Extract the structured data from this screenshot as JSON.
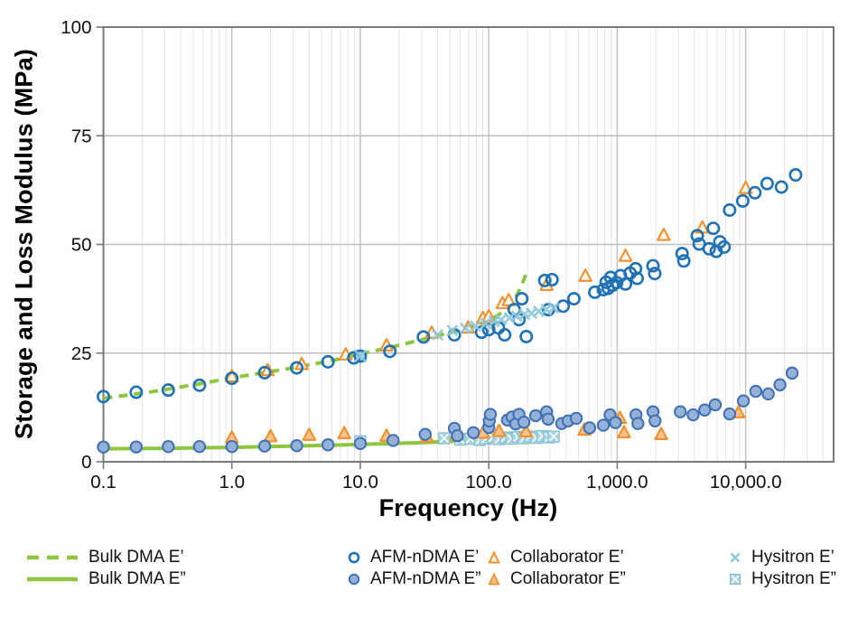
{
  "colors": {
    "green": "#8dc63f",
    "blue": "#2171b5",
    "blue_fill": "#96b1d8",
    "blue_fill_stroke": "#3f71b4",
    "orange": "#f0912d",
    "orange_fill": "#f7c28d",
    "orange_open_fill": "#fdf4ea",
    "teal": "#8ec6da",
    "teal_fill": "#a5d2e0",
    "teal_square_stroke": "#85bdd0"
  },
  "legend": {
    "items": [
      {
        "label": "Bulk DMA E’"
      },
      {
        "label": "Bulk DMA E”"
      },
      {
        "label": "AFM-nDMA E’"
      },
      {
        "label": "AFM-nDMA E”"
      },
      {
        "label": "Collaborator E’"
      },
      {
        "label": "Collaborator E”"
      },
      {
        "label": "Hysitron E’"
      },
      {
        "label": "Hysitron E”"
      }
    ]
  },
  "chart_data": {
    "type": "scatter",
    "title": "",
    "xlabel": "Frequency (Hz)",
    "ylabel": "Storage and Loss Modulus (MPa)",
    "x_scale": "log",
    "xlim": [
      0.1,
      48400
    ],
    "ylim": [
      0,
      100
    ],
    "x_ticks": [
      {
        "value": 0.1,
        "label": "0.1"
      },
      {
        "value": 1,
        "label": "1.0"
      },
      {
        "value": 10,
        "label": "10.0"
      },
      {
        "value": 100,
        "label": "100.0"
      },
      {
        "value": 1000,
        "label": "1,000.0"
      },
      {
        "value": 10000,
        "label": "10,000.0"
      }
    ],
    "y_ticks": [
      {
        "value": 0,
        "label": "0"
      },
      {
        "value": 25,
        "label": "25"
      },
      {
        "value": 50,
        "label": "50"
      },
      {
        "value": 75,
        "label": "75"
      },
      {
        "value": 100,
        "label": "100"
      }
    ],
    "grid": {
      "minor_color": "#e4e4e4",
      "major_color": "#c3c3c3",
      "h_color": "#bdbdbd",
      "border_color": "#7a7a7a"
    },
    "draw_order": [
      1,
      0,
      7,
      5,
      3,
      4,
      2,
      6
    ],
    "series": [
      {
        "name": "Bulk DMA E’",
        "type": "line",
        "style": "dashed",
        "color": "#8dc63f",
        "points": [
          [
            0.1,
            14.6
          ],
          [
            0.16,
            15.4
          ],
          [
            0.25,
            16.2
          ],
          [
            0.4,
            17.2
          ],
          [
            0.63,
            18.2
          ],
          [
            1.0,
            19.3
          ],
          [
            1.6,
            20.3
          ],
          [
            2.5,
            21.2
          ],
          [
            4.0,
            22.3
          ],
          [
            6.3,
            23.4
          ],
          [
            10,
            24.8
          ],
          [
            16,
            26.1
          ],
          [
            25,
            27.5
          ],
          [
            40,
            29.0
          ],
          [
            63,
            30.4
          ],
          [
            100,
            32.5
          ],
          [
            130,
            34.5
          ],
          [
            160,
            37.5
          ],
          [
            180,
            40.5
          ],
          [
            195,
            43.2
          ]
        ]
      },
      {
        "name": "Bulk DMA E”",
        "type": "line",
        "style": "solid",
        "color": "#8dc63f",
        "points": [
          [
            0.1,
            3.0
          ],
          [
            0.3,
            3.1
          ],
          [
            1.0,
            3.3
          ],
          [
            3.0,
            3.6
          ],
          [
            10,
            4.0
          ],
          [
            30,
            4.4
          ],
          [
            60,
            4.8
          ],
          [
            90,
            5.3
          ],
          [
            110,
            6.2
          ]
        ]
      },
      {
        "name": "AFM-nDMA E’",
        "type": "scatter",
        "marker": "circle-open",
        "color": "#2171b5",
        "points": [
          [
            0.1,
            15.0
          ],
          [
            0.18,
            16.0
          ],
          [
            0.32,
            16.5
          ],
          [
            0.56,
            17.6
          ],
          [
            1.0,
            19.2
          ],
          [
            1.8,
            20.5
          ],
          [
            3.2,
            21.6
          ],
          [
            5.6,
            23.0
          ],
          [
            8.9,
            23.9
          ],
          [
            10,
            24.3
          ],
          [
            17,
            25.4
          ],
          [
            31,
            28.7
          ],
          [
            54,
            29.2
          ],
          [
            88,
            29.8
          ],
          [
            100,
            30.4
          ],
          [
            119,
            30.8
          ],
          [
            133,
            29.2
          ],
          [
            158,
            35.0
          ],
          [
            172,
            32.7
          ],
          [
            181,
            37.5
          ],
          [
            196,
            28.8
          ],
          [
            273,
            41.7
          ],
          [
            292,
            35.0
          ],
          [
            311,
            41.9
          ],
          [
            380,
            35.8
          ],
          [
            460,
            37.5
          ],
          [
            670,
            39.0
          ],
          [
            780,
            39.6
          ],
          [
            820,
            41.3
          ],
          [
            850,
            39.9
          ],
          [
            890,
            42.4
          ],
          [
            920,
            40.6
          ],
          [
            990,
            41.2
          ],
          [
            1060,
            42.8
          ],
          [
            1160,
            40.9
          ],
          [
            1260,
            43.4
          ],
          [
            1390,
            44.4
          ],
          [
            1430,
            42.2
          ],
          [
            1900,
            45.1
          ],
          [
            1960,
            43.3
          ],
          [
            3200,
            47.9
          ],
          [
            3300,
            46.2
          ],
          [
            4200,
            52.0
          ],
          [
            4350,
            50.1
          ],
          [
            5200,
            49.0
          ],
          [
            5600,
            53.7
          ],
          [
            5900,
            48.4
          ],
          [
            6300,
            50.6
          ],
          [
            6800,
            49.4
          ],
          [
            7500,
            57.9
          ],
          [
            9500,
            60.0
          ],
          [
            11800,
            61.9
          ],
          [
            14700,
            64.0
          ],
          [
            19000,
            63.2
          ],
          [
            24500,
            66.0
          ]
        ]
      },
      {
        "name": "AFM-nDMA E”",
        "type": "scatter",
        "marker": "circle-filled",
        "color": "#3f71b4",
        "fill": "#96b1d8",
        "points": [
          [
            0.1,
            3.4
          ],
          [
            0.18,
            3.4
          ],
          [
            0.32,
            3.5
          ],
          [
            0.56,
            3.5
          ],
          [
            1.0,
            3.5
          ],
          [
            1.8,
            3.6
          ],
          [
            3.2,
            3.7
          ],
          [
            5.6,
            3.9
          ],
          [
            10,
            4.2
          ],
          [
            18,
            4.9
          ],
          [
            32,
            6.3
          ],
          [
            54,
            7.7
          ],
          [
            57,
            6.0
          ],
          [
            76,
            6.7
          ],
          [
            100,
            7.9
          ],
          [
            101,
            9.4
          ],
          [
            103,
            10.9
          ],
          [
            140,
            9.6
          ],
          [
            152,
            10.3
          ],
          [
            162,
            8.7
          ],
          [
            172,
            10.9
          ],
          [
            188,
            9.1
          ],
          [
            232,
            10.6
          ],
          [
            282,
            11.5
          ],
          [
            290,
            9.8
          ],
          [
            370,
            8.8
          ],
          [
            415,
            9.4
          ],
          [
            480,
            10.0
          ],
          [
            610,
            7.8
          ],
          [
            780,
            8.4
          ],
          [
            880,
            10.8
          ],
          [
            970,
            9.0
          ],
          [
            1400,
            10.8
          ],
          [
            1450,
            8.8
          ],
          [
            1900,
            11.5
          ],
          [
            1970,
            9.4
          ],
          [
            3100,
            11.5
          ],
          [
            3900,
            10.8
          ],
          [
            4800,
            11.9
          ],
          [
            5800,
            13.1
          ],
          [
            7500,
            11.0
          ],
          [
            9600,
            14.0
          ],
          [
            12000,
            16.2
          ],
          [
            15000,
            15.6
          ],
          [
            18500,
            17.7
          ],
          [
            23000,
            20.4
          ]
        ]
      },
      {
        "name": "Collaborator E’",
        "type": "scatter",
        "marker": "triangle-open",
        "color": "#f0912d",
        "fill": "#fdf4ea",
        "points": [
          [
            1.0,
            19.6
          ],
          [
            1.9,
            21.0
          ],
          [
            3.5,
            22.4
          ],
          [
            7.7,
            24.6
          ],
          [
            16,
            26.7
          ],
          [
            36,
            29.6
          ],
          [
            69,
            30.8
          ],
          [
            90,
            33.0
          ],
          [
            100,
            33.4
          ],
          [
            128,
            36.4
          ],
          [
            143,
            37.1
          ],
          [
            282,
            40.6
          ],
          [
            565,
            42.7
          ],
          [
            1160,
            47.3
          ],
          [
            2300,
            52.1
          ],
          [
            4600,
            53.8
          ],
          [
            10000,
            62.9
          ]
        ]
      },
      {
        "name": "Collaborator E”",
        "type": "scatter",
        "marker": "triangle-filled",
        "color": "#f0912d",
        "fill": "#f7c28d",
        "points": [
          [
            1.0,
            5.5
          ],
          [
            2.0,
            5.8
          ],
          [
            4.0,
            6.1
          ],
          [
            7.5,
            6.5
          ],
          [
            16,
            5.9
          ],
          [
            33,
            5.7
          ],
          [
            56,
            6.3
          ],
          [
            90,
            6.6
          ],
          [
            120,
            7.0
          ],
          [
            195,
            6.9
          ],
          [
            555,
            7.3
          ],
          [
            1050,
            10.0
          ],
          [
            1130,
            6.7
          ],
          [
            2200,
            6.3
          ],
          [
            8800,
            11.3
          ]
        ]
      },
      {
        "name": "Hysitron E’",
        "type": "scatter",
        "marker": "x",
        "color": "#8ec6da",
        "points": [
          [
            10,
            24.3
          ],
          [
            40,
            29.2
          ],
          [
            52,
            30.2
          ],
          [
            66,
            30.7
          ],
          [
            79,
            31.2
          ],
          [
            95,
            31.8
          ],
          [
            110,
            32.3
          ],
          [
            125,
            32.7
          ],
          [
            145,
            33.1
          ],
          [
            165,
            33.5
          ],
          [
            190,
            33.9
          ],
          [
            215,
            34.2
          ],
          [
            245,
            34.6
          ],
          [
            280,
            35.0
          ],
          [
            320,
            35.4
          ]
        ]
      },
      {
        "name": "Hysitron E”",
        "type": "scatter",
        "marker": "square-x",
        "color": "#85bdd0",
        "fill": "#a5d2e0",
        "points": [
          [
            10,
            24.3
          ],
          [
            10,
            4.7
          ],
          [
            45,
            5.4
          ],
          [
            60,
            5.1
          ],
          [
            72,
            5.3
          ],
          [
            85,
            5.0
          ],
          [
            95,
            5.3
          ],
          [
            108,
            5.6
          ],
          [
            120,
            5.2
          ],
          [
            135,
            5.6
          ],
          [
            150,
            5.3
          ],
          [
            168,
            5.7
          ],
          [
            188,
            5.4
          ],
          [
            210,
            5.8
          ],
          [
            235,
            5.5
          ],
          [
            262,
            5.9
          ],
          [
            295,
            5.6
          ],
          [
            320,
            5.8
          ]
        ]
      }
    ]
  }
}
